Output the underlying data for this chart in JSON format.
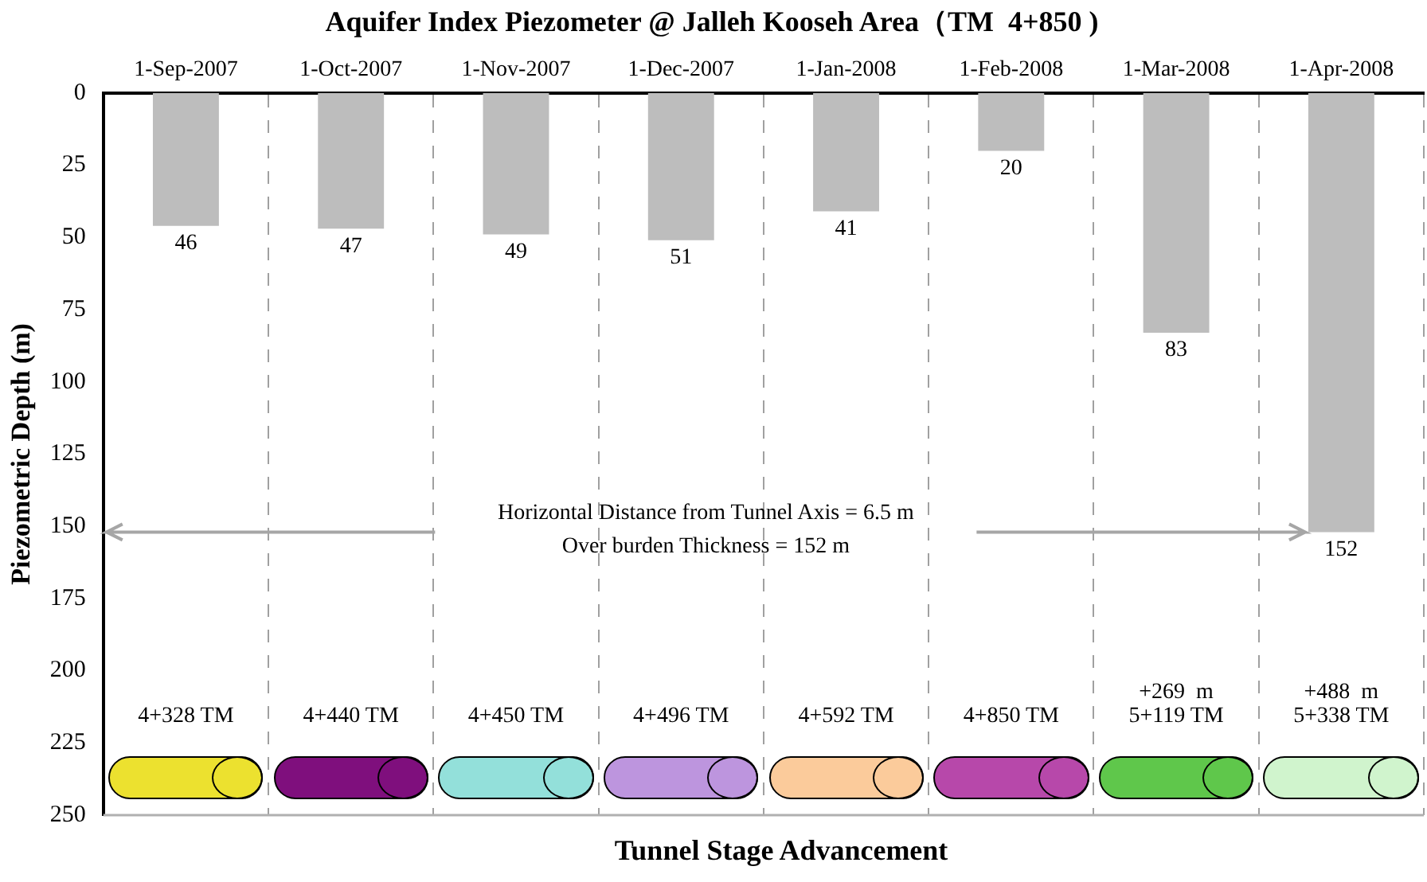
{
  "chart_data": {
    "type": "bar",
    "title": "Aquifer Index Piezometer @ Jalleh Kooseh Area（TM  4+850 )",
    "xlabel": "Tunnel Stage Advancement",
    "ylabel": "Piezometric Depth (m)",
    "categories": [
      "1-Sep-2007",
      "1-Oct-2007",
      "1-Nov-2007",
      "1-Dec-2007",
      "1-Jan-2008",
      "1-Feb-2008",
      "1-Mar-2008",
      "1-Apr-2008"
    ],
    "values": [
      46,
      47,
      49,
      51,
      41,
      20,
      83,
      152
    ],
    "color": "#bdbdbd",
    "ylim": [
      250,
      0
    ],
    "yticks": [
      0,
      25,
      50,
      75,
      100,
      125,
      150,
      175,
      200,
      225,
      250
    ],
    "grid": "x",
    "data_labels": true,
    "ref_lines": [
      {
        "axis": "y",
        "value": 152,
        "label": null,
        "color": "#a6a6a6"
      }
    ],
    "annotations": [
      "Horizontal Distance from Tunnel Axis = 6.5 m",
      "Over burden Thickness = 152 m",
      "4+328 TM",
      "4+440 TM",
      "4+450 TM",
      "4+496 TM",
      "4+592 TM",
      "4+850 TM",
      "+269  m\n5+119 TM",
      "+488  m\n5+338 TM"
    ]
  }
}
